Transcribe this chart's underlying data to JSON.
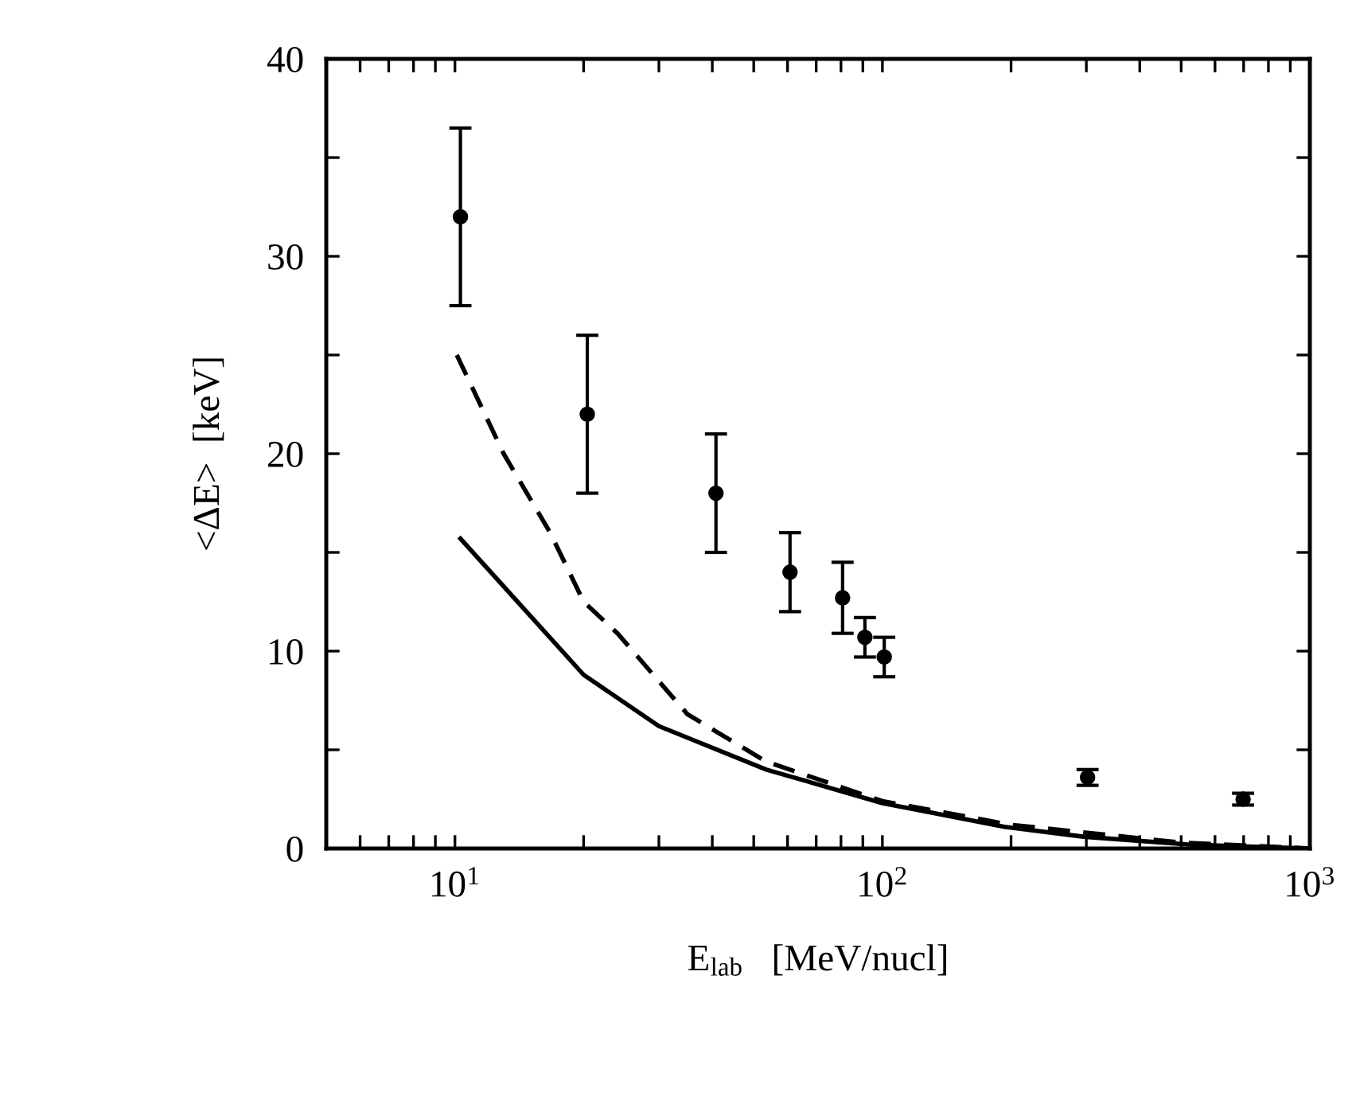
{
  "chart_data": {
    "type": "scatter",
    "xlabel": "E$_{lab}$   [MeV/nucl]",
    "ylabel": "<ΔE>  [keV]",
    "log": "x",
    "xlim": [
      5,
      1000
    ],
    "ylim": [
      0,
      40
    ],
    "xticks": [
      {
        "value": 5,
        "label": null
      },
      {
        "value": 6,
        "label": null
      },
      {
        "value": 7,
        "label": null
      },
      {
        "value": 8,
        "label": null
      },
      {
        "value": 9,
        "label": null
      },
      {
        "value": 10,
        "label": "10$^{1}$"
      },
      {
        "value": 20,
        "label": null
      },
      {
        "value": 30,
        "label": null
      },
      {
        "value": 40,
        "label": null
      },
      {
        "value": 50,
        "label": null
      },
      {
        "value": 60,
        "label": null
      },
      {
        "value": 70,
        "label": null
      },
      {
        "value": 80,
        "label": null
      },
      {
        "value": 90,
        "label": null
      },
      {
        "value": 100,
        "label": "10$^{2}$"
      },
      {
        "value": 200,
        "label": null
      },
      {
        "value": 300,
        "label": null
      },
      {
        "value": 400,
        "label": null
      },
      {
        "value": 500,
        "label": null
      },
      {
        "value": 600,
        "label": null
      },
      {
        "value": 700,
        "label": null
      },
      {
        "value": 800,
        "label": null
      },
      {
        "value": 900,
        "label": null
      },
      {
        "value": 1000,
        "label": "10$^{3}$"
      }
    ],
    "yticks": [
      0,
      {
        "value": 5,
        "label": null
      },
      10,
      {
        "value": 15,
        "label": null
      },
      20,
      {
        "value": 25,
        "label": null
      },
      30,
      {
        "value": 35,
        "label": null
      },
      40
    ],
    "grid": false,
    "legend": false,
    "series": [
      {
        "color": "#000000",
        "marker": "circle",
        "x": [
          10.3,
          20.4,
          40.8,
          60.8,
          80.7,
          91,
          101,
          302,
          698
        ],
        "values": [
          32,
          22,
          18,
          14,
          12.7,
          10.7,
          9.7,
          3.6,
          2.5
        ],
        "errors": [
          4.5,
          4,
          3,
          2,
          1.8,
          1,
          1,
          0.4,
          0.3
        ]
      },
      {
        "type": "line",
        "color": "#000000",
        "line_style": "dashed",
        "marker": "none",
        "x": [
          10.1,
          13,
          16.7,
          20,
          24,
          35,
          53.5,
          100,
          200,
          500,
          1000
        ],
        "values": [
          25,
          20,
          16,
          12.5,
          10.9,
          6.8,
          4.4,
          2.4,
          1.2,
          0.3,
          0
        ]
      },
      {
        "type": "line",
        "color": "#000000",
        "line_style": "solid",
        "marker": "none",
        "x": [
          10.3,
          20,
          30,
          53.5,
          100,
          193,
          295,
          520,
          1000
        ],
        "values": [
          15.7,
          8.8,
          6.2,
          4.0,
          2.3,
          1.1,
          0.6,
          0.2,
          0
        ]
      }
    ]
  }
}
